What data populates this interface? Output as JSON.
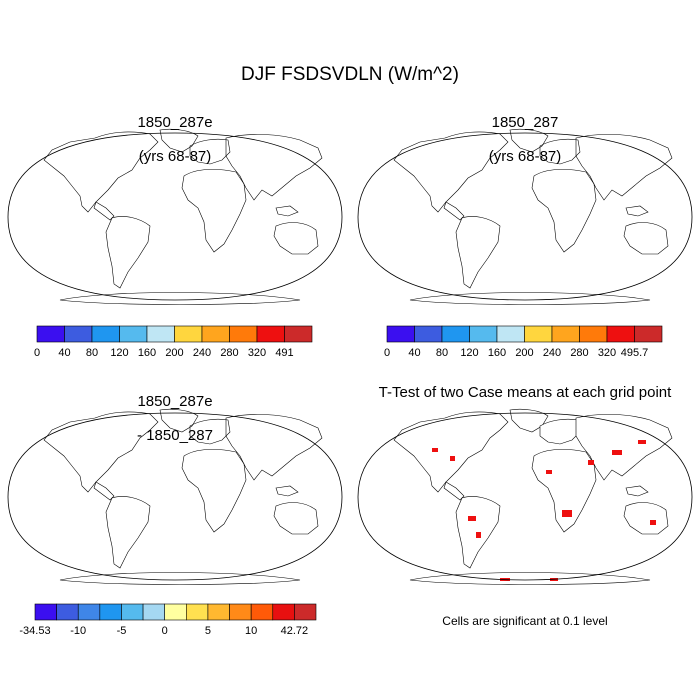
{
  "figure": {
    "title": "DJF FSDSVDLN (W/m^2)"
  },
  "panels": [
    {
      "title_line1": "1850_287e",
      "title_line2": "(yrs 68-87)",
      "colorbar": {
        "colors": [
          "#3b0ff0",
          "#3d5ce0",
          "#1f96f0",
          "#55baee",
          "#bfe6f4",
          "#ffd63e",
          "#ffa51e",
          "#ff7a0a",
          "#ee1010",
          "#cc2a2a"
        ],
        "labels": [
          "0",
          "40",
          "80",
          "120",
          "160",
          "200",
          "240",
          "280",
          "320",
          "491"
        ]
      }
    },
    {
      "title_line1": "1850_287",
      "title_line2": "(yrs 68-87)",
      "colorbar": {
        "colors": [
          "#3b0ff0",
          "#3d5ce0",
          "#1f96f0",
          "#55baee",
          "#bfe6f4",
          "#ffd63e",
          "#ffa51e",
          "#ff7a0a",
          "#ee1010",
          "#cc2a2a"
        ],
        "labels": [
          "0",
          "40",
          "80",
          "120",
          "160",
          "200",
          "240",
          "280",
          "320",
          "495.7"
        ]
      }
    },
    {
      "title_line1": "1850_287e",
      "title_line2": "- 1850_287",
      "colorbar": {
        "colors": [
          "#3b0ff0",
          "#3d5ce0",
          "#3f86e8",
          "#1f96f0",
          "#55baee",
          "#a5d8f2",
          "#ffffa0",
          "#ffe050",
          "#ffb830",
          "#ff8a18",
          "#ff5a08",
          "#e81010",
          "#cc2a2a"
        ],
        "labels": [
          "-34.53",
          "-10",
          "-5",
          "0",
          "5",
          "10",
          "42.72"
        ]
      }
    },
    {
      "title": "T-Test of two Case means at each grid point",
      "note": "Cells are significant at 0.1 level"
    }
  ]
}
